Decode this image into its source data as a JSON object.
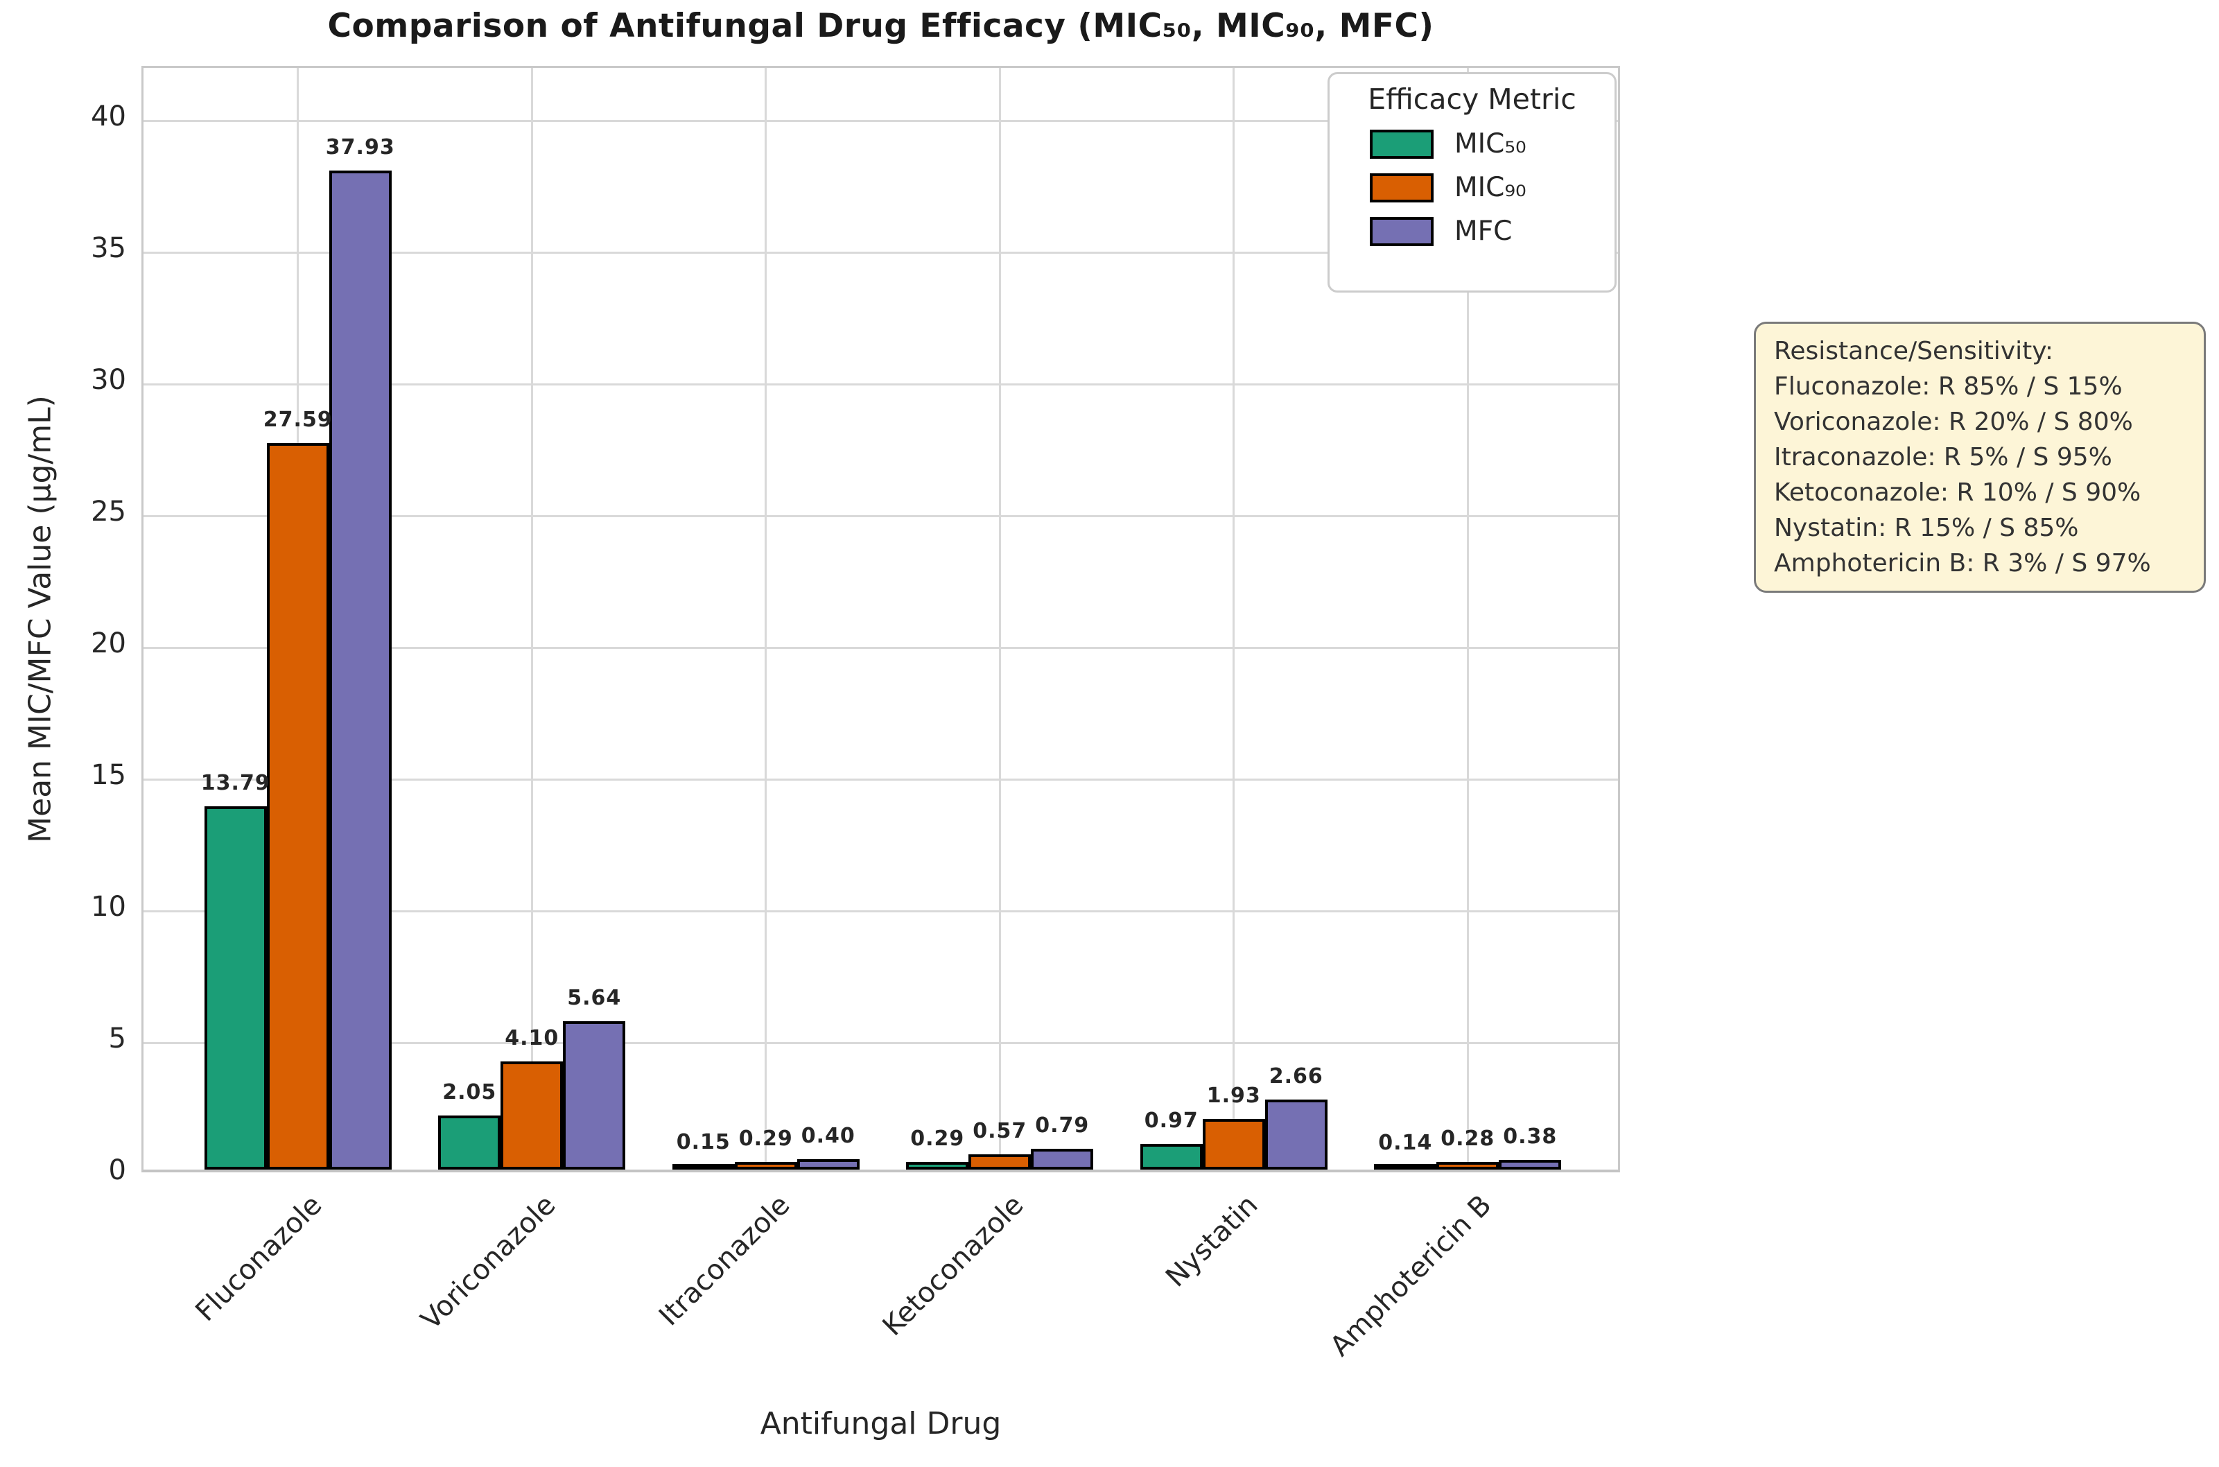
{
  "title": "Comparison of Antifungal Drug Efficacy (MIC₅₀, MIC₉₀, MFC)",
  "x_axis": {
    "label": "Antifungal Drug"
  },
  "y_axis": {
    "label": "Mean MIC/MFC Value (µg/mL)"
  },
  "legend": {
    "title": "Efficacy Metric",
    "entries": [
      {
        "label": "MIC₅₀",
        "color": "#1b9e77"
      },
      {
        "label": "MIC₉₀",
        "color": "#d95f02"
      },
      {
        "label": "MFC",
        "color": "#7570b3"
      }
    ]
  },
  "annotation_box": {
    "lines": [
      "Resistance/Sensitivity:",
      "Fluconazole: R 85% / S 15%",
      "Voriconazole: R 20% / S 80%",
      "Itraconazole: R 5% / S 95%",
      "Ketoconazole: R 10% / S 90%",
      "Nystatin: R 15% / S 85%",
      "Amphotericin B: R 3% / S 97%"
    ]
  },
  "chart_data": {
    "type": "bar",
    "title": "Comparison of Antifungal Drug Efficacy (MIC₅₀, MIC₉₀, MFC)",
    "xlabel": "Antifungal Drug",
    "ylabel": "Mean MIC/MFC Value (µg/mL)",
    "categories": [
      "Fluconazole",
      "Voriconazole",
      "Itraconazole",
      "Ketoconazole",
      "Nystatin",
      "Amphotericin B"
    ],
    "series": [
      {
        "name": "MIC₅₀",
        "color": "#1b9e77",
        "values": [
          13.79,
          2.05,
          0.15,
          0.29,
          0.97,
          0.14
        ],
        "labels": [
          "13.79",
          "2.05",
          "0.15",
          "0.29",
          "0.97",
          "0.14"
        ]
      },
      {
        "name": "MIC₉₀",
        "color": "#d95f02",
        "values": [
          27.59,
          4.1,
          0.29,
          0.57,
          1.93,
          0.28
        ],
        "labels": [
          "27.59",
          "4.10",
          "0.29",
          "0.57",
          "1.93",
          "0.28"
        ]
      },
      {
        "name": "MFC",
        "color": "#7570b3",
        "values": [
          37.93,
          5.64,
          0.4,
          0.79,
          2.66,
          0.38
        ],
        "labels": [
          "37.93",
          "5.64",
          "0.40",
          "0.79",
          "2.66",
          "0.38"
        ]
      }
    ],
    "yticks": [
      0,
      5,
      10,
      15,
      20,
      25,
      30,
      35,
      40
    ],
    "ylim": [
      0,
      42
    ],
    "grid": true,
    "bar_edge_color": "#000000",
    "legend_position": "upper right",
    "xtick_rotation": 45
  }
}
